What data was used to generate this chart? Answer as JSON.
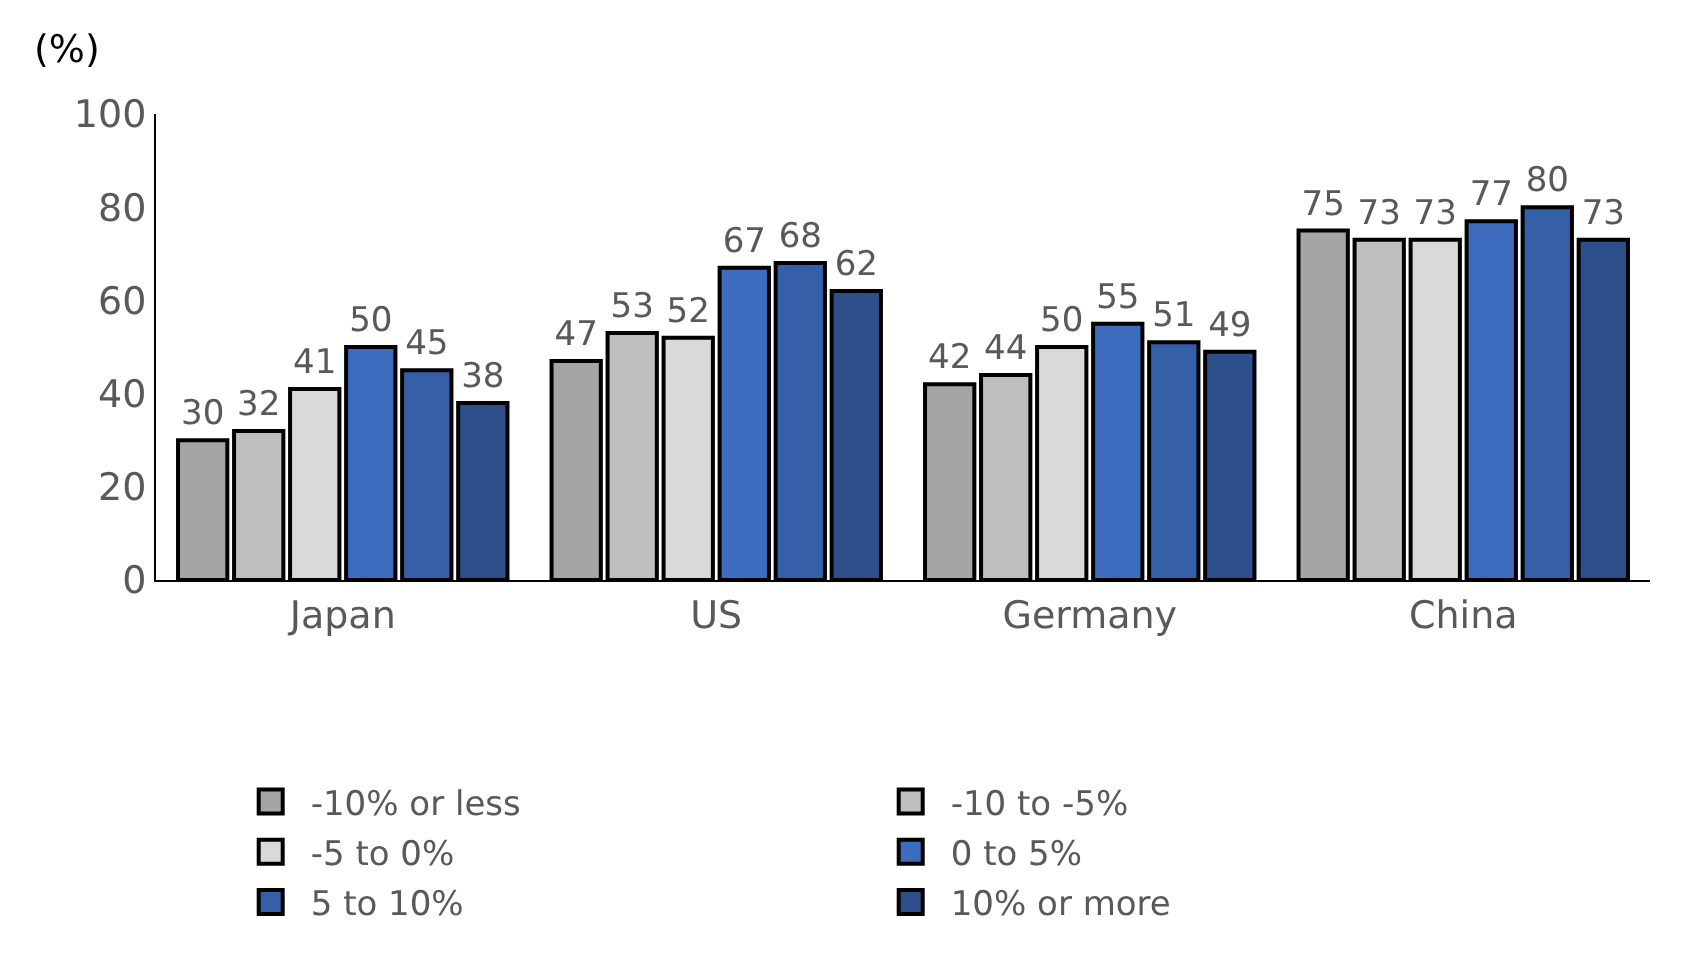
{
  "chart_data": {
    "type": "bar",
    "ylabel": "(%)",
    "categories": [
      "Japan",
      "US",
      "Germany",
      "China"
    ],
    "series": [
      {
        "name": "-10% or less",
        "color": "#a5a5a5",
        "values": [
          30,
          47,
          42,
          75
        ]
      },
      {
        "name": "-10 to -5%",
        "color": "#bfbfbf",
        "values": [
          32,
          53,
          44,
          73
        ]
      },
      {
        "name": "-5 to 0%",
        "color": "#d9d9d9",
        "values": [
          41,
          52,
          50,
          73
        ]
      },
      {
        "name": "0 to 5%",
        "color": "#3d6cbf",
        "values": [
          50,
          67,
          55,
          77
        ]
      },
      {
        "name": "5 to 10%",
        "color": "#3560a8",
        "values": [
          45,
          68,
          51,
          80
        ]
      },
      {
        "name": "10% or more",
        "color": "#2e4f8a",
        "values": [
          38,
          62,
          49,
          73
        ]
      }
    ],
    "ylim": [
      0,
      100
    ],
    "yticks": [
      0,
      20,
      40,
      60,
      80,
      100
    ],
    "data_labels": true,
    "grid": false,
    "legend": "bottom"
  }
}
